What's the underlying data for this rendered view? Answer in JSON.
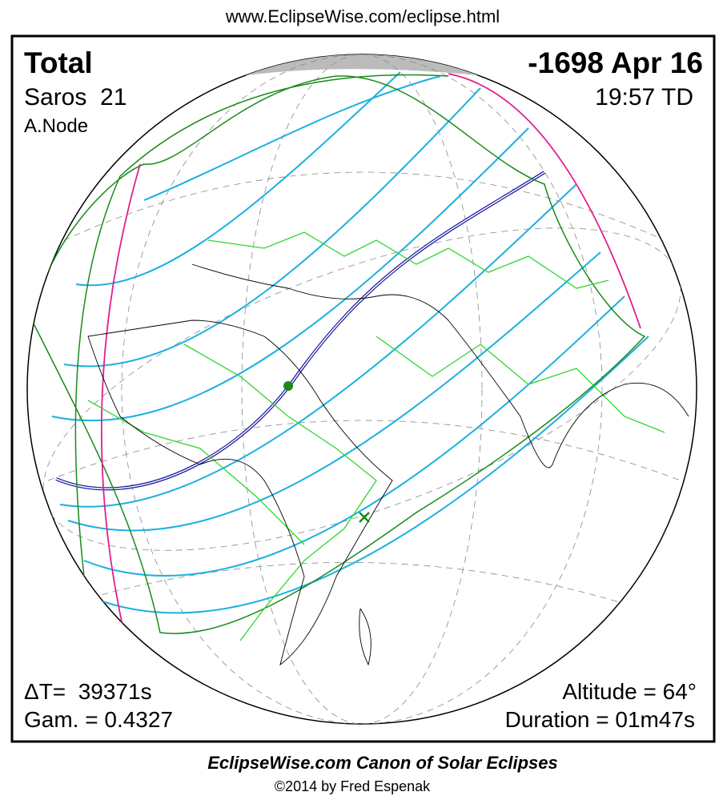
{
  "header": {
    "url": "www.EclipseWise.com/eclipse.html"
  },
  "map": {
    "eclipse_type": "Total",
    "date": "-1698 Apr 16",
    "saros": "Saros  21",
    "time": "19:57 TD",
    "node": "A.Node",
    "delta_t": "ΔT=  39371s",
    "gamma": "Gam. = 0.4327",
    "altitude": "Altitude = 64°",
    "duration": "Duration = 01m47s"
  },
  "footer": {
    "title": "EclipseWise.com Canon of Solar Eclipses",
    "credit": "©2014 by Fred Espenak"
  }
}
